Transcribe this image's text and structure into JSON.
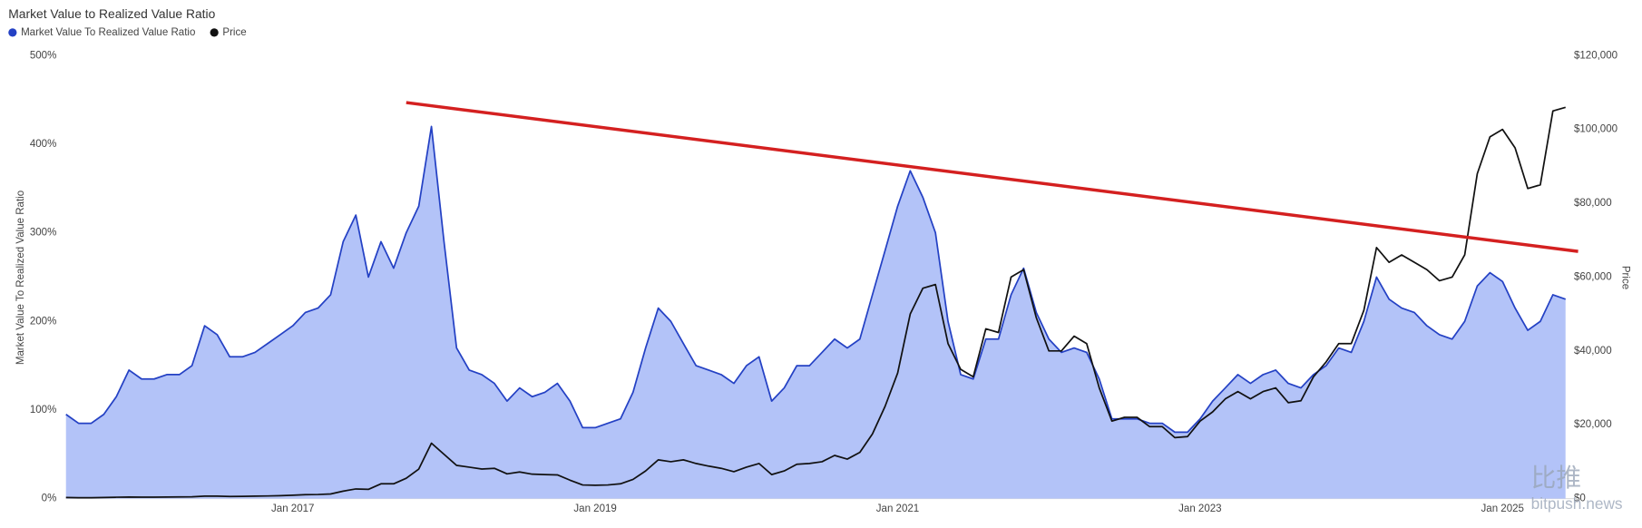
{
  "chart_data": {
    "type": "area",
    "title": "Market Value to Realized Value Ratio",
    "y_label": "Market Value To Realized Value Ratio",
    "y2_label": "Price",
    "x": [
      "2015-07",
      "2015-08",
      "2015-09",
      "2015-10",
      "2015-11",
      "2015-12",
      "2016-01",
      "2016-02",
      "2016-03",
      "2016-04",
      "2016-05",
      "2016-06",
      "2016-07",
      "2016-08",
      "2016-09",
      "2016-10",
      "2016-11",
      "2016-12",
      "2017-01",
      "2017-02",
      "2017-03",
      "2017-04",
      "2017-05",
      "2017-06",
      "2017-07",
      "2017-08",
      "2017-09",
      "2017-10",
      "2017-11",
      "2017-12",
      "2018-01",
      "2018-02",
      "2018-03",
      "2018-04",
      "2018-05",
      "2018-06",
      "2018-07",
      "2018-08",
      "2018-09",
      "2018-10",
      "2018-11",
      "2018-12",
      "2019-01",
      "2019-02",
      "2019-03",
      "2019-04",
      "2019-05",
      "2019-06",
      "2019-07",
      "2019-08",
      "2019-09",
      "2019-10",
      "2019-11",
      "2019-12",
      "2020-01",
      "2020-02",
      "2020-03",
      "2020-04",
      "2020-05",
      "2020-06",
      "2020-07",
      "2020-08",
      "2020-09",
      "2020-10",
      "2020-11",
      "2020-12",
      "2021-01",
      "2021-02",
      "2021-03",
      "2021-04",
      "2021-05",
      "2021-06",
      "2021-07",
      "2021-08",
      "2021-09",
      "2021-10",
      "2021-11",
      "2021-12",
      "2022-01",
      "2022-02",
      "2022-03",
      "2022-04",
      "2022-05",
      "2022-06",
      "2022-07",
      "2022-08",
      "2022-09",
      "2022-10",
      "2022-11",
      "2022-12",
      "2023-01",
      "2023-02",
      "2023-03",
      "2023-04",
      "2023-05",
      "2023-06",
      "2023-07",
      "2023-08",
      "2023-09",
      "2023-10",
      "2023-11",
      "2023-12",
      "2024-01",
      "2024-02",
      "2024-03",
      "2024-04",
      "2024-05",
      "2024-06",
      "2024-07",
      "2024-08",
      "2024-09",
      "2024-10",
      "2024-11",
      "2024-12",
      "2025-01",
      "2025-02",
      "2025-03",
      "2025-04",
      "2025-05",
      "2025-06"
    ],
    "series": [
      {
        "name": "Market Value To Realized Value Ratio",
        "color": "#2441c4",
        "fill": "#b3c3f8",
        "values": [
          95,
          85,
          85,
          95,
          115,
          145,
          135,
          135,
          140,
          140,
          150,
          195,
          185,
          160,
          160,
          165,
          175,
          185,
          195,
          210,
          215,
          230,
          290,
          320,
          250,
          290,
          260,
          300,
          330,
          420,
          290,
          170,
          145,
          140,
          130,
          110,
          125,
          115,
          120,
          130,
          110,
          80,
          80,
          85,
          90,
          120,
          170,
          215,
          200,
          175,
          150,
          145,
          140,
          130,
          150,
          160,
          110,
          125,
          150,
          150,
          165,
          180,
          170,
          180,
          230,
          280,
          330,
          370,
          340,
          300,
          200,
          140,
          135,
          180,
          180,
          230,
          260,
          210,
          180,
          165,
          170,
          165,
          135,
          90,
          90,
          90,
          85,
          85,
          75,
          75,
          90,
          110,
          125,
          140,
          130,
          140,
          145,
          130,
          125,
          140,
          150,
          170,
          165,
          200,
          250,
          225,
          215,
          210,
          195,
          185,
          180,
          200,
          240,
          255,
          245,
          215,
          190,
          200,
          230,
          225
        ]
      },
      {
        "name": "Price",
        "color": "#111111",
        "axis": "y2",
        "values": [
          280,
          230,
          235,
          270,
          360,
          430,
          410,
          400,
          415,
          440,
          470,
          650,
          660,
          580,
          605,
          640,
          720,
          800,
          900,
          1050,
          1100,
          1250,
          2000,
          2600,
          2500,
          4000,
          4000,
          5500,
          8000,
          15000,
          12000,
          9000,
          8500,
          8000,
          8200,
          6700,
          7200,
          6600,
          6500,
          6400,
          5000,
          3700,
          3600,
          3700,
          4000,
          5200,
          7500,
          10500,
          10000,
          10500,
          9500,
          8800,
          8200,
          7300,
          8500,
          9500,
          6500,
          7500,
          9300,
          9500,
          10000,
          11700,
          10700,
          12500,
          17500,
          25000,
          34000,
          50000,
          57000,
          58000,
          42000,
          35000,
          33000,
          46000,
          45000,
          60000,
          62000,
          49000,
          40000,
          40000,
          44000,
          42000,
          30000,
          21000,
          22000,
          22000,
          19500,
          19500,
          16500,
          16800,
          21000,
          23500,
          27000,
          29000,
          27000,
          29000,
          30000,
          26000,
          26500,
          33000,
          37000,
          42000,
          42000,
          51000,
          68000,
          64000,
          66000,
          64000,
          62000,
          59000,
          60000,
          66000,
          88000,
          98000,
          100000,
          95000,
          84000,
          85000,
          105000,
          106000
        ]
      }
    ],
    "trendline": {
      "x": [
        "2017-10",
        "2025-07"
      ],
      "values": [
        447,
        279
      ],
      "color": "#d42020"
    },
    "xlim": [
      "2015-07",
      "2025-07"
    ],
    "xticks": [
      {
        "value": "2017-01",
        "label": "Jan 2017"
      },
      {
        "value": "2019-01",
        "label": "Jan 2019"
      },
      {
        "value": "2021-01",
        "label": "Jan 2021"
      },
      {
        "value": "2023-01",
        "label": "Jan 2023"
      },
      {
        "value": "2025-01",
        "label": "Jan 2025"
      }
    ],
    "ylim": [
      0,
      500
    ],
    "yticks": [
      {
        "value": 0,
        "label": "0%"
      },
      {
        "value": 100,
        "label": "100%"
      },
      {
        "value": 200,
        "label": "200%"
      },
      {
        "value": 300,
        "label": "300%"
      },
      {
        "value": 400,
        "label": "400%"
      },
      {
        "value": 500,
        "label": "500%"
      }
    ],
    "y2lim": [
      0,
      120000
    ],
    "y2ticks": [
      {
        "value": 0,
        "label": "$0"
      },
      {
        "value": 20000,
        "label": "$20,000"
      },
      {
        "value": 40000,
        "label": "$40,000"
      },
      {
        "value": 60000,
        "label": "$60,000"
      },
      {
        "value": 80000,
        "label": "$80,000"
      },
      {
        "value": 100000,
        "label": "$100,000"
      },
      {
        "value": 120000,
        "label": "$120,000"
      }
    ],
    "grid": false,
    "watermark": [
      "比推",
      "bitpush.news"
    ]
  }
}
